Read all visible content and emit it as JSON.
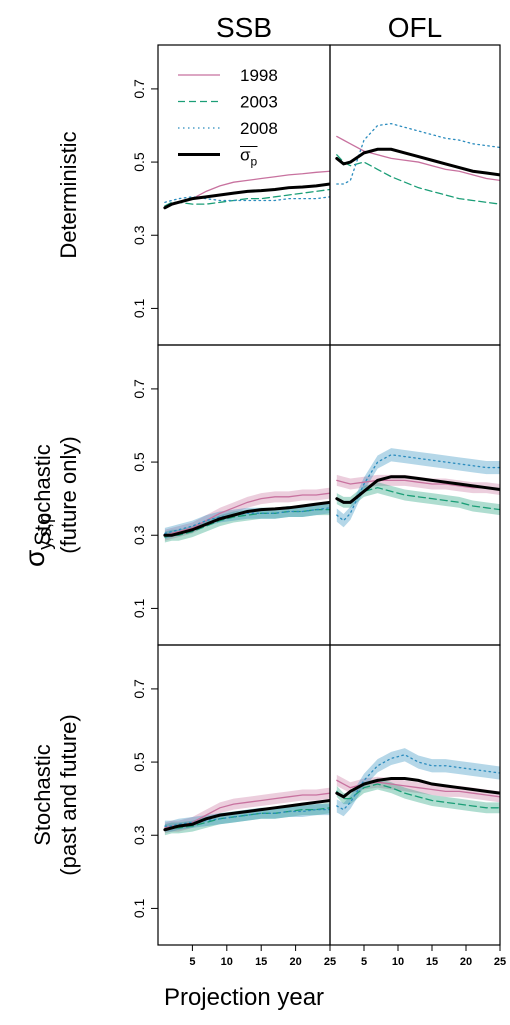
{
  "figure": {
    "ylabel": "σ",
    "ylabel_sub": "y,s,p",
    "xlabel": "Projection year"
  },
  "chart_data": [
    {
      "type": "line",
      "title": "SSB",
      "ylabel": [
        "Deterministic"
      ],
      "legend": "top-left",
      "x": [
        1,
        2,
        3,
        5,
        7,
        9,
        11,
        13,
        15,
        17,
        19,
        21,
        23,
        25
      ],
      "xlim": [
        0,
        25
      ],
      "ylim": [
        0,
        0.82
      ],
      "yticks": [
        0.1,
        0.3,
        0.5,
        0.7
      ],
      "series": [
        {
          "name": "1998",
          "color": "#c8729f",
          "dash": "solid",
          "values": [
            0.38,
            0.385,
            0.39,
            0.4,
            0.42,
            0.435,
            0.445,
            0.45,
            0.455,
            0.46,
            0.465,
            0.468,
            0.472,
            0.475
          ]
        },
        {
          "name": "2003",
          "color": "#1b9e77",
          "dash": "dashed",
          "values": [
            0.38,
            0.39,
            0.39,
            0.385,
            0.385,
            0.39,
            0.395,
            0.4,
            0.4,
            0.405,
            0.41,
            0.415,
            0.42,
            0.425
          ]
        },
        {
          "name": "2008",
          "color": "#2b8cbe",
          "dash": "dotted",
          "values": [
            0.39,
            0.395,
            0.4,
            0.405,
            0.4,
            0.395,
            0.395,
            0.395,
            0.395,
            0.395,
            0.4,
            0.4,
            0.4,
            0.405
          ]
        },
        {
          "name": "σ",
          "subscript": "p",
          "color": "#000000",
          "dash": "solid",
          "width": 3,
          "values": [
            0.375,
            0.385,
            0.39,
            0.4,
            0.405,
            0.41,
            0.415,
            0.42,
            0.422,
            0.425,
            0.43,
            0.432,
            0.435,
            0.44
          ]
        }
      ]
    },
    {
      "type": "line",
      "title": "OFL",
      "x": [
        1,
        2,
        3,
        5,
        7,
        9,
        11,
        13,
        15,
        17,
        19,
        21,
        23,
        25
      ],
      "xlim": [
        0,
        25
      ],
      "ylim": [
        0,
        0.82
      ],
      "series": [
        {
          "color": "#c8729f",
          "dash": "solid",
          "values": [
            0.57,
            0.56,
            0.55,
            0.53,
            0.52,
            0.51,
            0.505,
            0.5,
            0.49,
            0.48,
            0.475,
            0.465,
            0.455,
            0.45
          ]
        },
        {
          "color": "#1b9e77",
          "dash": "dashed",
          "values": [
            0.52,
            0.5,
            0.49,
            0.5,
            0.48,
            0.46,
            0.445,
            0.43,
            0.42,
            0.41,
            0.4,
            0.395,
            0.39,
            0.385
          ]
        },
        {
          "color": "#2b8cbe",
          "dash": "dotted",
          "values": [
            0.44,
            0.44,
            0.45,
            0.56,
            0.6,
            0.605,
            0.595,
            0.585,
            0.575,
            0.565,
            0.56,
            0.55,
            0.545,
            0.54
          ]
        },
        {
          "color": "#000000",
          "dash": "solid",
          "width": 3,
          "values": [
            0.51,
            0.495,
            0.5,
            0.525,
            0.535,
            0.535,
            0.525,
            0.515,
            0.505,
            0.495,
            0.485,
            0.475,
            0.47,
            0.465
          ]
        }
      ]
    },
    {
      "type": "line",
      "ylabel": [
        "Stochastic",
        "(future only)"
      ],
      "x": [
        1,
        2,
        3,
        5,
        7,
        9,
        11,
        13,
        15,
        17,
        19,
        21,
        23,
        25
      ],
      "xlim": [
        0,
        25
      ],
      "ylim": [
        0,
        0.82
      ],
      "yticks": [
        0.1,
        0.3,
        0.5,
        0.7
      ],
      "series": [
        {
          "color": "#c8729f",
          "dash": "solid",
          "band": 0.015,
          "values": [
            0.3,
            0.305,
            0.31,
            0.32,
            0.34,
            0.36,
            0.375,
            0.39,
            0.4,
            0.405,
            0.405,
            0.41,
            0.41,
            0.415
          ]
        },
        {
          "color": "#1b9e77",
          "dash": "dashed",
          "band": 0.015,
          "values": [
            0.295,
            0.3,
            0.3,
            0.31,
            0.325,
            0.34,
            0.35,
            0.355,
            0.36,
            0.36,
            0.365,
            0.365,
            0.37,
            0.37
          ]
        },
        {
          "color": "#2b8cbe",
          "dash": "dotted",
          "band": 0.015,
          "values": [
            0.305,
            0.31,
            0.315,
            0.325,
            0.34,
            0.35,
            0.355,
            0.36,
            0.36,
            0.36,
            0.365,
            0.365,
            0.37,
            0.375
          ]
        },
        {
          "color": "#000000",
          "dash": "solid",
          "width": 3,
          "values": [
            0.3,
            0.3,
            0.305,
            0.315,
            0.33,
            0.345,
            0.355,
            0.365,
            0.37,
            0.372,
            0.375,
            0.38,
            0.385,
            0.39
          ]
        }
      ]
    },
    {
      "type": "line",
      "x": [
        1,
        2,
        3,
        5,
        7,
        9,
        11,
        13,
        15,
        17,
        19,
        21,
        23,
        25
      ],
      "xlim": [
        0,
        25
      ],
      "ylim": [
        0,
        0.82
      ],
      "series": [
        {
          "color": "#c8729f",
          "dash": "solid",
          "band": 0.015,
          "values": [
            0.45,
            0.445,
            0.44,
            0.445,
            0.45,
            0.45,
            0.45,
            0.445,
            0.44,
            0.44,
            0.435,
            0.43,
            0.43,
            0.425
          ]
        },
        {
          "color": "#1b9e77",
          "dash": "dashed",
          "band": 0.015,
          "values": [
            0.4,
            0.39,
            0.39,
            0.42,
            0.43,
            0.42,
            0.41,
            0.405,
            0.4,
            0.395,
            0.39,
            0.38,
            0.375,
            0.37
          ]
        },
        {
          "color": "#2b8cbe",
          "dash": "dotted",
          "band": 0.018,
          "values": [
            0.355,
            0.34,
            0.36,
            0.44,
            0.5,
            0.52,
            0.515,
            0.51,
            0.505,
            0.5,
            0.495,
            0.49,
            0.485,
            0.485
          ]
        },
        {
          "color": "#000000",
          "dash": "solid",
          "width": 3,
          "values": [
            0.4,
            0.39,
            0.39,
            0.42,
            0.45,
            0.46,
            0.46,
            0.455,
            0.45,
            0.445,
            0.44,
            0.435,
            0.43,
            0.425
          ]
        }
      ]
    },
    {
      "type": "line",
      "ylabel": [
        "Stochastic",
        "(past and future)"
      ],
      "x": [
        1,
        2,
        3,
        5,
        7,
        9,
        11,
        13,
        15,
        17,
        19,
        21,
        23,
        25
      ],
      "xlim": [
        0,
        25
      ],
      "ylim": [
        0,
        0.82
      ],
      "yticks": [
        0.1,
        0.3,
        0.5,
        0.7
      ],
      "xticks": [
        5,
        10,
        15,
        20,
        25
      ],
      "series": [
        {
          "color": "#c8729f",
          "dash": "solid",
          "band": 0.015,
          "values": [
            0.32,
            0.325,
            0.325,
            0.335,
            0.355,
            0.375,
            0.385,
            0.39,
            0.395,
            0.4,
            0.405,
            0.41,
            0.41,
            0.415
          ]
        },
        {
          "color": "#1b9e77",
          "dash": "dashed",
          "band": 0.015,
          "values": [
            0.315,
            0.32,
            0.32,
            0.325,
            0.335,
            0.345,
            0.35,
            0.355,
            0.36,
            0.36,
            0.365,
            0.37,
            0.37,
            0.375
          ]
        },
        {
          "color": "#2b8cbe",
          "dash": "dotted",
          "band": 0.015,
          "values": [
            0.325,
            0.325,
            0.33,
            0.335,
            0.34,
            0.345,
            0.35,
            0.355,
            0.36,
            0.36,
            0.365,
            0.365,
            0.37,
            0.37
          ]
        },
        {
          "color": "#000000",
          "dash": "solid",
          "width": 3,
          "values": [
            0.315,
            0.32,
            0.325,
            0.33,
            0.345,
            0.355,
            0.36,
            0.365,
            0.37,
            0.375,
            0.38,
            0.385,
            0.39,
            0.395
          ]
        }
      ]
    },
    {
      "type": "line",
      "x": [
        1,
        2,
        3,
        5,
        7,
        9,
        11,
        13,
        15,
        17,
        19,
        21,
        23,
        25
      ],
      "xlim": [
        0,
        25
      ],
      "ylim": [
        0,
        0.82
      ],
      "xticks": [
        5,
        10,
        15,
        20,
        25
      ],
      "series": [
        {
          "color": "#c8729f",
          "dash": "solid",
          "band": 0.015,
          "values": [
            0.45,
            0.44,
            0.43,
            0.44,
            0.445,
            0.44,
            0.435,
            0.43,
            0.425,
            0.42,
            0.42,
            0.415,
            0.41,
            0.405
          ]
        },
        {
          "color": "#1b9e77",
          "dash": "dashed",
          "band": 0.015,
          "values": [
            0.42,
            0.4,
            0.4,
            0.43,
            0.44,
            0.43,
            0.415,
            0.405,
            0.395,
            0.39,
            0.385,
            0.38,
            0.375,
            0.375
          ]
        },
        {
          "color": "#2b8cbe",
          "dash": "dotted",
          "band": 0.018,
          "values": [
            0.38,
            0.37,
            0.39,
            0.45,
            0.49,
            0.51,
            0.52,
            0.5,
            0.49,
            0.49,
            0.485,
            0.48,
            0.475,
            0.47
          ]
        },
        {
          "color": "#000000",
          "dash": "solid",
          "width": 3,
          "values": [
            0.415,
            0.405,
            0.42,
            0.44,
            0.45,
            0.455,
            0.455,
            0.45,
            0.44,
            0.435,
            0.43,
            0.425,
            0.42,
            0.415
          ]
        }
      ]
    }
  ]
}
